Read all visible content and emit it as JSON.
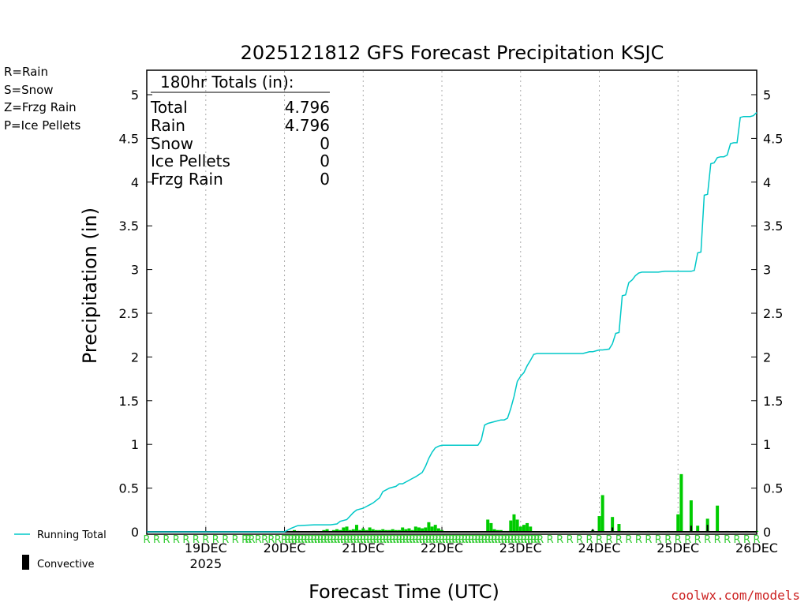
{
  "chart_data": {
    "type": "bar+line",
    "title": "2025121812 GFS Forecast Precipitation KSJC",
    "xlabel": "Forecast Time (UTC)",
    "ylabel": "Precipitation (in)",
    "ylim": [
      0,
      5.25
    ],
    "xlim_hours": [
      -6,
      180
    ],
    "y_ticks": [
      0,
      0.5,
      1,
      1.5,
      2,
      2.5,
      3,
      3.5,
      4,
      4.5,
      5
    ],
    "y_tick_labels": [
      "0",
      "0.5",
      "1",
      "1.5",
      "2",
      "2.5",
      "3",
      "3.5",
      "4",
      "4.5",
      "5"
    ],
    "date_ticks": [
      {
        "hour": 12,
        "label": "19DEC",
        "sublabel": "2025"
      },
      {
        "hour": 36,
        "label": "20DEC",
        "sublabel": ""
      },
      {
        "hour": 60,
        "label": "21DEC",
        "sublabel": ""
      },
      {
        "hour": 84,
        "label": "22DEC",
        "sublabel": ""
      },
      {
        "hour": 108,
        "label": "23DEC",
        "sublabel": ""
      },
      {
        "hour": 132,
        "label": "24DEC",
        "sublabel": ""
      },
      {
        "hour": 156,
        "label": "25DEC",
        "sublabel": ""
      },
      {
        "hour": 180,
        "label": "26DEC",
        "sublabel": ""
      }
    ],
    "running_total": {
      "name": "Running Total",
      "color": "#00c8c8",
      "hours": [
        -6,
        0,
        12,
        36,
        38,
        40,
        45,
        50,
        52,
        53,
        55,
        57,
        58,
        60,
        61,
        62,
        63,
        65,
        66,
        67,
        68,
        70,
        71,
        72,
        74,
        75,
        76,
        78,
        79,
        80,
        81,
        82,
        83,
        84,
        85,
        87,
        90,
        95,
        96,
        97,
        98,
        100,
        102,
        103,
        104,
        105,
        106,
        107,
        108,
        109,
        110,
        111,
        112,
        113,
        115,
        120,
        125,
        126,
        127,
        128,
        129,
        130,
        131,
        132,
        133,
        135,
        136,
        137,
        138,
        139,
        140,
        141,
        142,
        143,
        144,
        145,
        150,
        152,
        153,
        154,
        155,
        156,
        158,
        160,
        161,
        162,
        163,
        164,
        165,
        166,
        167,
        168,
        169,
        170,
        171,
        172,
        173,
        174,
        175,
        176,
        177,
        178,
        179,
        180
      ],
      "values": [
        0,
        0,
        0,
        0,
        0.04,
        0.07,
        0.08,
        0.08,
        0.09,
        0.12,
        0.14,
        0.22,
        0.25,
        0.27,
        0.29,
        0.31,
        0.33,
        0.39,
        0.46,
        0.48,
        0.5,
        0.52,
        0.55,
        0.55,
        0.59,
        0.61,
        0.63,
        0.68,
        0.75,
        0.84,
        0.91,
        0.96,
        0.98,
        0.99,
        0.99,
        0.99,
        0.99,
        0.99,
        1.05,
        1.22,
        1.24,
        1.26,
        1.28,
        1.28,
        1.3,
        1.41,
        1.55,
        1.72,
        1.78,
        1.82,
        1.9,
        1.96,
        2.03,
        2.04,
        2.04,
        2.04,
        2.04,
        2.04,
        2.04,
        2.05,
        2.06,
        2.06,
        2.07,
        2.08,
        2.08,
        2.09,
        2.15,
        2.27,
        2.28,
        2.7,
        2.71,
        2.85,
        2.88,
        2.93,
        2.96,
        2.97,
        2.97,
        2.98,
        2.98,
        2.98,
        2.98,
        2.98,
        2.98,
        2.98,
        2.99,
        3.19,
        3.2,
        3.85,
        3.86,
        4.21,
        4.22,
        4.28,
        4.29,
        4.29,
        4.31,
        4.44,
        4.45,
        4.45,
        4.74,
        4.75,
        4.75,
        4.75,
        4.76,
        4.796
      ]
    },
    "precip_bars": {
      "name": "Rain",
      "color": "#00cc00",
      "hours": [
        38,
        39,
        40,
        45,
        48,
        49,
        50,
        51,
        52,
        53,
        54,
        55,
        56,
        57,
        58,
        59,
        60,
        61,
        62,
        63,
        64,
        65,
        66,
        67,
        68,
        69,
        70,
        71,
        72,
        73,
        74,
        75,
        76,
        77,
        78,
        79,
        80,
        81,
        82,
        83,
        84,
        98,
        99,
        100,
        101,
        102,
        103,
        104,
        105,
        106,
        107,
        108,
        109,
        110,
        111,
        127,
        130,
        132,
        133,
        136,
        138,
        139,
        141,
        144,
        147,
        150,
        153,
        156,
        157,
        160,
        162,
        165,
        168,
        171,
        174,
        177,
        180
      ],
      "values": [
        0.01,
        0.02,
        0.01,
        0.01,
        0.02,
        0.03,
        0.01,
        0.02,
        0.03,
        0.02,
        0.05,
        0.06,
        0.02,
        0.03,
        0.08,
        0.02,
        0.04,
        0.02,
        0.05,
        0.03,
        0.02,
        0.02,
        0.03,
        0.02,
        0.02,
        0.03,
        0.02,
        0.02,
        0.05,
        0.03,
        0.04,
        0.02,
        0.06,
        0.05,
        0.04,
        0.05,
        0.11,
        0.06,
        0.08,
        0.04,
        0.02,
        0.14,
        0.1,
        0.03,
        0.02,
        0.02,
        0.01,
        0.01,
        0.13,
        0.2,
        0.14,
        0.06,
        0.08,
        0.1,
        0.06,
        0.01,
        0.02,
        0.18,
        0.42,
        0.17,
        0.09,
        0.01,
        0.01,
        0.01,
        0.01,
        0.01,
        0.01,
        0.2,
        0.66,
        0.36,
        0.07,
        0.15,
        0.3,
        0.01,
        0.01,
        0.01,
        0.01
      ]
    },
    "convective_bars": {
      "name": "Convective",
      "color": "#000000",
      "hours": [
        130,
        136,
        160,
        165
      ],
      "values": [
        0.03,
        0.05,
        0.07,
        0.08
      ]
    },
    "precip_type_markers": {
      "hours": [
        -6,
        -3,
        0,
        3,
        6,
        9,
        12,
        15,
        18,
        21,
        24,
        25,
        26,
        28,
        30,
        32,
        34,
        36,
        37,
        38,
        39,
        40,
        41,
        42,
        43,
        44,
        45,
        46,
        47,
        48,
        49,
        50,
        51,
        52,
        53,
        54,
        55,
        56,
        57,
        58,
        59,
        60,
        61,
        62,
        63,
        64,
        65,
        66,
        67,
        68,
        69,
        70,
        71,
        72,
        73,
        74,
        75,
        76,
        77,
        78,
        79,
        80,
        81,
        82,
        83,
        84,
        85,
        86,
        87,
        88,
        89,
        90,
        91,
        92,
        93,
        94,
        95,
        96,
        97,
        98,
        99,
        100,
        101,
        102,
        103,
        104,
        105,
        106,
        107,
        108,
        109,
        110,
        111,
        112,
        113,
        114,
        117,
        120,
        123,
        126,
        129,
        132,
        135,
        138,
        141,
        144,
        147,
        150,
        153,
        156,
        159,
        162,
        165,
        168,
        171,
        174,
        177,
        180
      ],
      "symbol": "R"
    },
    "totals_box": {
      "header": "180hr Totals (in):",
      "rows": [
        {
          "label": "Total",
          "value": "4.796"
        },
        {
          "label": "Rain",
          "value": "4.796"
        },
        {
          "label": "Snow",
          "value": "0"
        },
        {
          "label": "Ice Pellets",
          "value": "0"
        },
        {
          "label": "Frzg Rain",
          "value": "0"
        }
      ]
    }
  },
  "precip_legend": [
    {
      "label": "R=Rain",
      "color": "#33cc33"
    },
    {
      "label": "S=Snow",
      "color": "#3355dd"
    },
    {
      "label": "Z=Frzg Rain",
      "color": "#ff8833"
    },
    {
      "label": "P=Ice Pellets",
      "color": "#ff22aa"
    }
  ],
  "series_legend": {
    "running_total_label": "Running Total",
    "convective_label": "Convective"
  },
  "credit": "coolwx.com/models"
}
